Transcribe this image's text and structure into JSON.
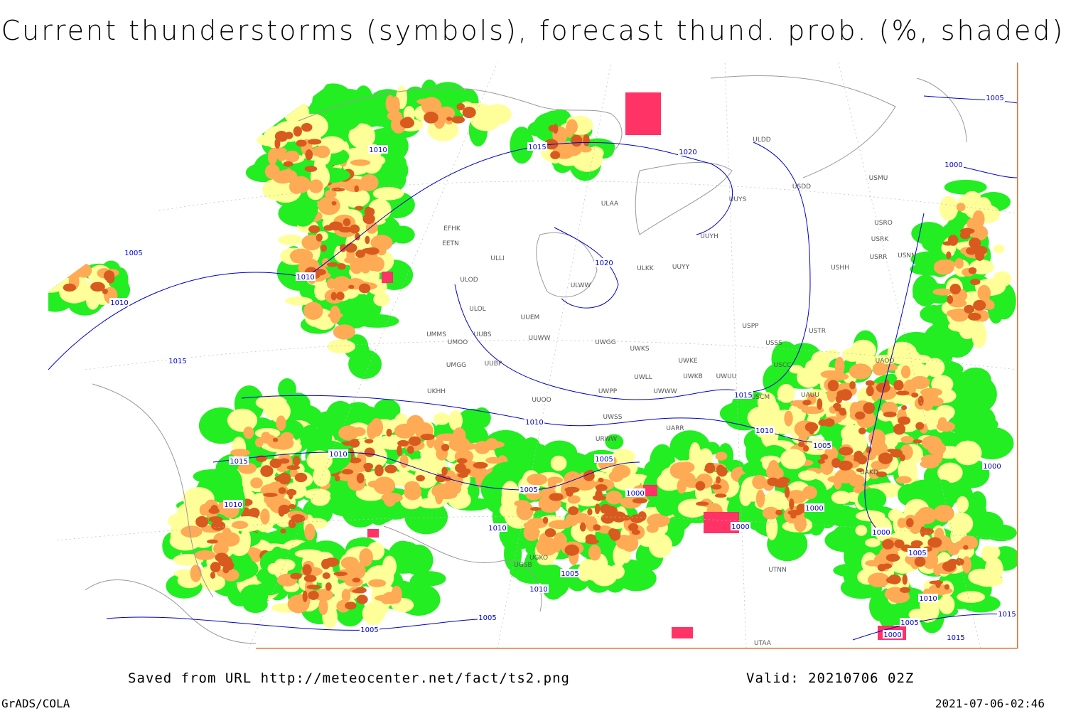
{
  "title": "Current thunderstorms (symbols), forecast thund. prob. (%, shaded)",
  "footer": {
    "source": "Saved from URL http://meteocenter.net/fact/ts2.png",
    "valid": "Valid: 20210706 02Z",
    "software": "GrADS/COLA",
    "timestamp": "2021-07-06-02:46"
  },
  "isobar_labels": [
    1005,
    1010,
    1015,
    1020,
    1000,
    1005,
    1010,
    1020,
    1010,
    1015,
    1015,
    1010,
    1010,
    1010,
    1015,
    1005,
    1005,
    1000,
    1000,
    1005,
    1010,
    1000,
    1000,
    1010,
    1000,
    1005,
    1005,
    1010,
    1010,
    1005,
    1005,
    1005,
    1000,
    1015,
    1015
  ],
  "stations": [
    "ULDD",
    "USDD",
    "USMU",
    "ULAA",
    "UUYS",
    "UUYH",
    "USRO",
    "USRK",
    "USRR",
    "USNN",
    "EFHK",
    "EETN",
    "ULLI",
    "UUYY",
    "ULKK",
    "USHH",
    "ULOD",
    "ULWW",
    "ULOL",
    "UUEM",
    "USPP",
    "UMMS",
    "UUBS",
    "UUWW",
    "USTR",
    "UMOO",
    "UWGG",
    "UWKS",
    "USSS",
    "UWKE",
    "UMGG",
    "UUBP",
    "USCC",
    "UWKB",
    "UWUU",
    "UWLL",
    "UAOO",
    "UWPP",
    "UWWW",
    "USCM",
    "UAUU",
    "UKHH",
    "UUOO",
    "UWSS",
    "UARR",
    "URWW",
    "UAKD",
    "UGKO",
    "UGSB",
    "UTNN",
    "UTAA"
  ]
}
